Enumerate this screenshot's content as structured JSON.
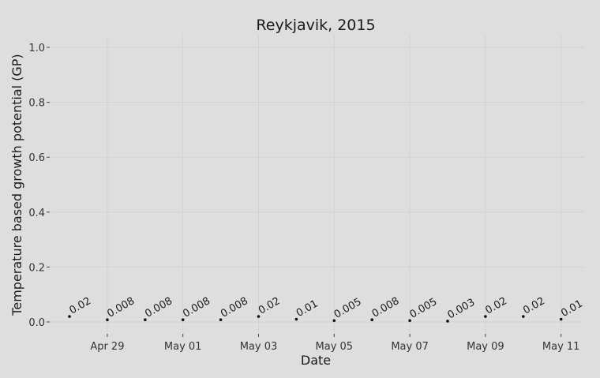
{
  "chart_data": {
    "type": "scatter",
    "title": "Reykjavik, 2015",
    "xlabel": "Date",
    "ylabel": "Temperature based growth potential (GP)",
    "x_tick_labels": [
      "Apr 29",
      "May 01",
      "May 03",
      "May 05",
      "May 07",
      "May 09",
      "May 11"
    ],
    "y_tick_labels": [
      "0.0",
      "0.2",
      "0.4",
      "0.6",
      "0.8",
      "1.0"
    ],
    "ylim": [
      0,
      1
    ],
    "xlim": [
      "2015-04-27",
      "2015-05-11"
    ],
    "grid": true,
    "points": [
      {
        "x": "2015-04-28",
        "y": 0.02,
        "label": "0.02"
      },
      {
        "x": "2015-04-29",
        "y": 0.008,
        "label": "0.008"
      },
      {
        "x": "2015-04-30",
        "y": 0.008,
        "label": "0.008"
      },
      {
        "x": "2015-05-01",
        "y": 0.008,
        "label": "0.008"
      },
      {
        "x": "2015-05-02",
        "y": 0.008,
        "label": "0.008"
      },
      {
        "x": "2015-05-03",
        "y": 0.02,
        "label": "0.02"
      },
      {
        "x": "2015-05-04",
        "y": 0.01,
        "label": "0.01"
      },
      {
        "x": "2015-05-05",
        "y": 0.005,
        "label": "0.005"
      },
      {
        "x": "2015-05-06",
        "y": 0.008,
        "label": "0.008"
      },
      {
        "x": "2015-05-07",
        "y": 0.005,
        "label": "0.005"
      },
      {
        "x": "2015-05-08",
        "y": 0.003,
        "label": "0.003"
      },
      {
        "x": "2015-05-09",
        "y": 0.02,
        "label": "0.02"
      },
      {
        "x": "2015-05-10",
        "y": 0.02,
        "label": "0.02"
      },
      {
        "x": "2015-05-11",
        "y": 0.01,
        "label": "0.01"
      }
    ]
  }
}
